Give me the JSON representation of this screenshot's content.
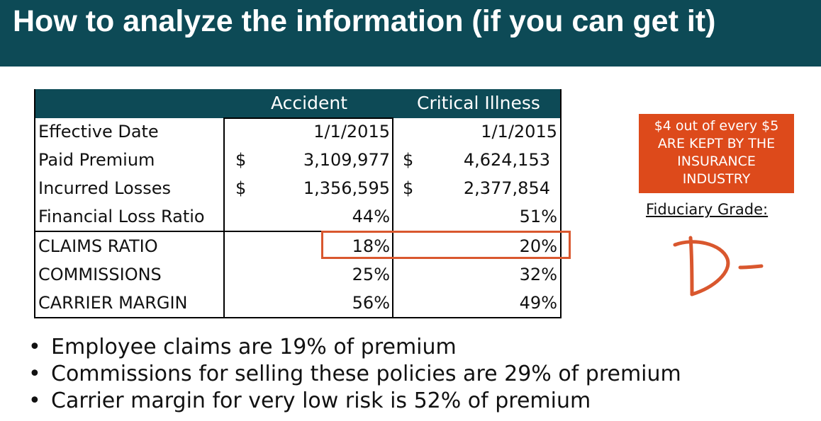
{
  "title": "How to analyze the information (if you can get it)",
  "table": {
    "columns": [
      "Accident",
      "Critical Illness"
    ],
    "rows": [
      {
        "label": "Effective Date",
        "accident_currency": "",
        "accident": "1/1/2015",
        "ci_currency": "",
        "ci": "1/1/2015"
      },
      {
        "label": "Paid Premium",
        "accident_currency": "$",
        "accident": "3,109,977",
        "ci_currency": "$",
        "ci": "4,624,153"
      },
      {
        "label": "Incurred Losses",
        "accident_currency": "$",
        "accident": "1,356,595",
        "ci_currency": "$",
        "ci": "2,377,854"
      },
      {
        "label": "Financial Loss Ratio",
        "accident_currency": "",
        "accident": "44%",
        "ci_currency": "",
        "ci": "51%"
      },
      {
        "label": "CLAIMS RATIO",
        "accident_currency": "",
        "accident": "18%",
        "ci_currency": "",
        "ci": "20%"
      },
      {
        "label": "COMMISSIONS",
        "accident_currency": "",
        "accident": "25%",
        "ci_currency": "",
        "ci": "32%"
      },
      {
        "label": "CARRIER MARGIN",
        "accident_currency": "",
        "accident": "56%",
        "ci_currency": "",
        "ci": "49%"
      }
    ]
  },
  "callout": {
    "lines": [
      "$4 out of every $5",
      "ARE KEPT BY THE",
      "INSURANCE",
      "INDUSTRY"
    ],
    "color": "#dd4a1b"
  },
  "grade": {
    "label": "Fiduciary Grade:",
    "handwritten_mark": "D-"
  },
  "bullets": [
    "Employee claims are 19% of premium",
    "Commissions for selling these policies are 29% of premium",
    "Carrier margin for very low risk is 52% of premium"
  ],
  "colors": {
    "header_bg": "#0d4a56",
    "highlight": "#d9572e"
  }
}
